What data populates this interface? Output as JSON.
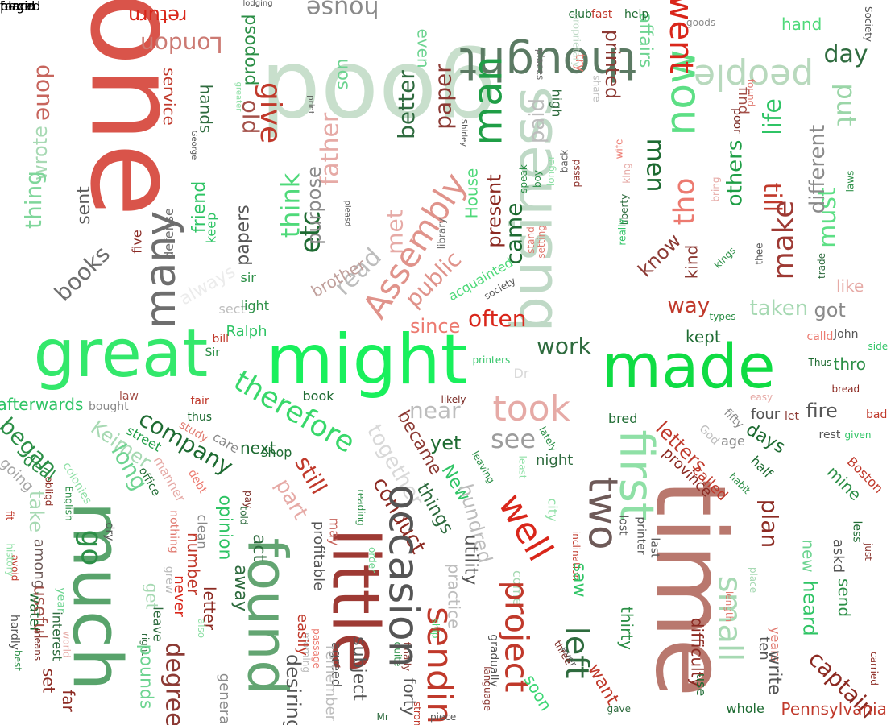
{
  "words": [
    {
      "text": "one",
      "color": "#d9544a"
    },
    {
      "text": "good",
      "color": "#c8dfcc"
    },
    {
      "text": "great",
      "color": "#33e86b"
    },
    {
      "text": "might",
      "color": "#19f05c"
    },
    {
      "text": "made",
      "color": "#0fdc43"
    },
    {
      "text": "time",
      "color": "#b9786e"
    },
    {
      "text": "much",
      "color": "#58a36b"
    },
    {
      "text": "business",
      "color": "#bfd9c6"
    },
    {
      "text": "found",
      "color": "#63a572"
    },
    {
      "text": "little",
      "color": "#9e3a34"
    },
    {
      "text": "first",
      "color": "#8fe0a6"
    },
    {
      "text": "thought",
      "color": "#5b7a63"
    },
    {
      "text": "people",
      "color": "#b8d9bd"
    },
    {
      "text": "man",
      "color": "#1f9e46"
    },
    {
      "text": "many",
      "color": "#6e6e6e"
    },
    {
      "text": "now",
      "color": "#5ddf85"
    },
    {
      "text": "went",
      "color": "#d9261a"
    },
    {
      "text": "house",
      "color": "#8a8a8a"
    },
    {
      "text": "London",
      "color": "#cc7a73"
    },
    {
      "text": "return",
      "color": "#d9261a"
    },
    {
      "text": "done",
      "color": "#c7655d"
    },
    {
      "text": "service",
      "color": "#c0392b"
    },
    {
      "text": "hands",
      "color": "#2e6b3e"
    },
    {
      "text": "old",
      "color": "#a35049"
    },
    {
      "text": "give",
      "color": "#c0392b"
    },
    {
      "text": "think",
      "color": "#4fd97a"
    },
    {
      "text": "father",
      "color": "#e6aaa6"
    },
    {
      "text": "etc",
      "color": "#1e6b32"
    },
    {
      "text": "purpose",
      "color": "#8a8a8a"
    },
    {
      "text": "Assembly",
      "color": "#e0938b"
    },
    {
      "text": "better",
      "color": "#2f6b3f"
    },
    {
      "text": "paper",
      "color": "#8c3a34"
    },
    {
      "text": "son",
      "color": "#6ed491"
    },
    {
      "text": "proposd",
      "color": "#2c8f47"
    },
    {
      "text": "wrote",
      "color": "#a7d9b3"
    },
    {
      "text": "thing",
      "color": "#7fd69a"
    },
    {
      "text": "sent",
      "color": "#5c5c5c"
    },
    {
      "text": "books",
      "color": "#6e6e6e"
    },
    {
      "text": "friend",
      "color": "#2fc465"
    },
    {
      "text": "keep",
      "color": "#2fc465"
    },
    {
      "text": "defense",
      "color": "#6e6e6e"
    },
    {
      "text": "papers",
      "color": "#555555"
    },
    {
      "text": "five",
      "color": "#8a2a24"
    },
    {
      "text": "always",
      "color": "#ececec"
    },
    {
      "text": "sir",
      "color": "#2c8f47"
    },
    {
      "text": "sect",
      "color": "#bfbfbf"
    },
    {
      "text": "light",
      "color": "#2c8f47"
    },
    {
      "text": "Ralph",
      "color": "#2fc465"
    },
    {
      "text": "bill",
      "color": "#c0392b"
    },
    {
      "text": "Sir",
      "color": "#2c8f47"
    },
    {
      "text": "met",
      "color": "#e6aaa6"
    },
    {
      "text": "read",
      "color": "#bdbdbd"
    },
    {
      "text": "brother",
      "color": "#c0a09c"
    },
    {
      "text": "public",
      "color": "#e0938b"
    },
    {
      "text": "since",
      "color": "#ec7a70"
    },
    {
      "text": "often",
      "color": "#d9261a"
    },
    {
      "text": "acquainted",
      "color": "#4fd97a"
    },
    {
      "text": "came",
      "color": "#1e6b32"
    },
    {
      "text": "present",
      "color": "#8c2a22"
    },
    {
      "text": "House",
      "color": "#4fd97a"
    },
    {
      "text": "library",
      "color": "#6e6e6e"
    },
    {
      "text": "stand",
      "color": "#e07a70"
    },
    {
      "text": "setting",
      "color": "#e07a70"
    },
    {
      "text": "society",
      "color": "#555555"
    },
    {
      "text": "printers",
      "color": "#2fc465"
    },
    {
      "text": "Dr",
      "color": "#d9d9d9"
    },
    {
      "text": "work",
      "color": "#2e6b3e"
    },
    {
      "text": "paid",
      "color": "#bdbdbd"
    },
    {
      "text": "speak",
      "color": "#2c8f47"
    },
    {
      "text": "boy",
      "color": "#2c8f47"
    },
    {
      "text": "longer",
      "color": "#8fe0a6"
    },
    {
      "text": "passd",
      "color": "#8a2a24"
    },
    {
      "text": "back",
      "color": "#5c5c5c"
    },
    {
      "text": "wife",
      "color": "#ec7a70"
    },
    {
      "text": "king",
      "color": "#e6aaa6"
    },
    {
      "text": "liberty",
      "color": "#2e6b3e"
    },
    {
      "text": "really",
      "color": "#2fc465"
    },
    {
      "text": "men",
      "color": "#1e6b32"
    },
    {
      "text": "tho",
      "color": "#ec7a70"
    },
    {
      "text": "know",
      "color": "#8c3a34"
    },
    {
      "text": "kind",
      "color": "#8c3a34"
    },
    {
      "text": "others",
      "color": "#1f9e46"
    },
    {
      "text": "till",
      "color": "#c0392b"
    },
    {
      "text": "make",
      "color": "#9e3a34"
    },
    {
      "text": "must",
      "color": "#5ddf85"
    },
    {
      "text": "different",
      "color": "#8a8a8a"
    },
    {
      "text": "laws",
      "color": "#2c8f47"
    },
    {
      "text": "thee",
      "color": "#555555"
    },
    {
      "text": "trade",
      "color": "#2e6b3e"
    },
    {
      "text": "kings",
      "color": "#2c8f47"
    },
    {
      "text": "bring",
      "color": "#e6aaa6"
    },
    {
      "text": "life",
      "color": "#2fc465"
    },
    {
      "text": "find",
      "color": "#a35049"
    },
    {
      "text": "poor",
      "color": "#7a2a24"
    },
    {
      "text": "found",
      "color": "#e07a70"
    },
    {
      "text": "put",
      "color": "#9bd6a8"
    },
    {
      "text": "day",
      "color": "#2e6b3e"
    },
    {
      "text": "hand",
      "color": "#4fd97a"
    },
    {
      "text": "affairs",
      "color": "#6ed491"
    },
    {
      "text": "printed",
      "color": "#8c3a34"
    },
    {
      "text": "high",
      "color": "#2e6b3e"
    },
    {
      "text": "share",
      "color": "#bdbdbd"
    },
    {
      "text": "try",
      "color": "#ec7a70"
    },
    {
      "text": "places",
      "color": "#6e6e6e"
    },
    {
      "text": "even",
      "color": "#6ed491"
    },
    {
      "text": "fast",
      "color": "#c0392b"
    },
    {
      "text": "help",
      "color": "#1e6b32"
    },
    {
      "text": "club",
      "color": "#1e6b32"
    },
    {
      "text": "goods",
      "color": "#8a8a8a"
    },
    {
      "text": "Society",
      "color": "#555555"
    },
    {
      "text": "way",
      "color": "#c0392b"
    },
    {
      "text": "taken",
      "color": "#a7d9b3"
    },
    {
      "text": "got",
      "color": "#8a8a8a"
    },
    {
      "text": "like",
      "color": "#e6aaa6"
    },
    {
      "text": "kept",
      "color": "#1e6b32"
    },
    {
      "text": "types",
      "color": "#2c8f47"
    },
    {
      "text": "calld",
      "color": "#ec7a70"
    },
    {
      "text": "John",
      "color": "#555555"
    },
    {
      "text": "side",
      "color": "#2fc465"
    },
    {
      "text": "thro",
      "color": "#2c8f47"
    },
    {
      "text": "Thus",
      "color": "#1e6b32"
    },
    {
      "text": "bread",
      "color": "#8c2a22"
    },
    {
      "text": "afterwards",
      "color": "#2fc465"
    },
    {
      "text": "law",
      "color": "#a35049"
    },
    {
      "text": "bought",
      "color": "#8a8a8a"
    },
    {
      "text": "fair",
      "color": "#c0392b"
    },
    {
      "text": "thus",
      "color": "#1e6b32"
    },
    {
      "text": "study",
      "color": "#e07a70"
    },
    {
      "text": "began",
      "color": "#2c8f47"
    },
    {
      "text": "Keimer",
      "color": "#a7d9b3"
    },
    {
      "text": "deal",
      "color": "#2c8f47"
    },
    {
      "text": "going",
      "color": "#a7a7a7"
    },
    {
      "text": "colonies",
      "color": "#8fe0a6"
    },
    {
      "text": "street",
      "color": "#1f9e46"
    },
    {
      "text": "long",
      "color": "#6ed491"
    },
    {
      "text": "company",
      "color": "#1e6b32"
    },
    {
      "text": "care",
      "color": "#8a8a8a"
    },
    {
      "text": "manner",
      "color": "#e6aaa6"
    },
    {
      "text": "office",
      "color": "#1e6b32"
    },
    {
      "text": "debt",
      "color": "#ec7a70"
    },
    {
      "text": "shop",
      "color": "#1e6b32"
    },
    {
      "text": "next",
      "color": "#1e6b32"
    },
    {
      "text": "therefore",
      "color": "#39d86b"
    },
    {
      "text": "book",
      "color": "#1e6b32"
    },
    {
      "text": "likely",
      "color": "#7a2a24"
    },
    {
      "text": "near",
      "color": "#bdbdbd"
    },
    {
      "text": "took",
      "color": "#e6aaa6"
    },
    {
      "text": "see",
      "color": "#9c9c9c"
    },
    {
      "text": "together",
      "color": "#d9d9d9"
    },
    {
      "text": "became",
      "color": "#8c3a34"
    },
    {
      "text": "yet",
      "color": "#1e6b32"
    },
    {
      "text": "still",
      "color": "#c0392b"
    },
    {
      "text": "part",
      "color": "#e6aaa6"
    },
    {
      "text": "New",
      "color": "#2fc465"
    },
    {
      "text": "things",
      "color": "#2e6b3e"
    },
    {
      "text": "conduct",
      "color": "#8c2a22"
    },
    {
      "text": "hundred",
      "color": "#bdbdbd"
    },
    {
      "text": "lately",
      "color": "#2c8f47"
    },
    {
      "text": "night",
      "color": "#2e6b3e"
    },
    {
      "text": "leaving",
      "color": "#2c8f47"
    },
    {
      "text": "least",
      "color": "#8fe0a6"
    },
    {
      "text": "city",
      "color": "#8fe0a6"
    },
    {
      "text": "well",
      "color": "#d9261a"
    },
    {
      "text": "two",
      "color": "#6e5a58"
    },
    {
      "text": "inclination",
      "color": "#c0392b"
    },
    {
      "text": "lost",
      "color": "#555555"
    },
    {
      "text": "printer",
      "color": "#555555"
    },
    {
      "text": "last",
      "color": "#555555"
    },
    {
      "text": "bred",
      "color": "#1e6b32"
    },
    {
      "text": "letters",
      "color": "#c0392b"
    },
    {
      "text": "God",
      "color": "#bdbdbd"
    },
    {
      "text": "province",
      "color": "#8c2a22"
    },
    {
      "text": "called",
      "color": "#c0392b"
    },
    {
      "text": "age",
      "color": "#8a8a8a"
    },
    {
      "text": "days",
      "color": "#1e6b32"
    },
    {
      "text": "half",
      "color": "#1e6b32"
    },
    {
      "text": "habit",
      "color": "#2c8f47"
    },
    {
      "text": "fifty",
      "color": "#8a8a8a"
    },
    {
      "text": "four",
      "color": "#555555"
    },
    {
      "text": "easy",
      "color": "#e6aaa6"
    },
    {
      "text": "fire",
      "color": "#555555"
    },
    {
      "text": "let",
      "color": "#8c3a34"
    },
    {
      "text": "rest",
      "color": "#555555"
    },
    {
      "text": "given",
      "color": "#2fc465"
    },
    {
      "text": "bad",
      "color": "#c0392b"
    },
    {
      "text": "mine",
      "color": "#2c8f47"
    },
    {
      "text": "Boston",
      "color": "#c0392b"
    },
    {
      "text": "plan",
      "color": "#8c2a22"
    },
    {
      "text": "less",
      "color": "#1e6b32"
    },
    {
      "text": "just",
      "color": "#8c3a34"
    },
    {
      "text": "new",
      "color": "#6ed491"
    },
    {
      "text": "askd",
      "color": "#555555"
    },
    {
      "text": "send",
      "color": "#2c8f47"
    },
    {
      "text": "heard",
      "color": "#2fc465"
    },
    {
      "text": "small",
      "color": "#a7d9b3"
    },
    {
      "text": "place",
      "color": "#a7d9b3"
    },
    {
      "text": "length",
      "color": "#e07a70"
    },
    {
      "text": "years",
      "color": "#e07a70"
    },
    {
      "text": "ten",
      "color": "#555555"
    },
    {
      "text": "write",
      "color": "#555555"
    },
    {
      "text": "difficulty",
      "color": "#8c2a22"
    },
    {
      "text": "use",
      "color": "#1e6b32"
    },
    {
      "text": "whole",
      "color": "#1e6b32"
    },
    {
      "text": "carried",
      "color": "#8c2a22"
    },
    {
      "text": "captain",
      "color": "#8c2a22"
    },
    {
      "text": "Pennsylvania",
      "color": "#c0392b"
    },
    {
      "text": "thirty",
      "color": "#2c8f47"
    },
    {
      "text": "saw",
      "color": "#2fc465"
    },
    {
      "text": "come",
      "color": "#a7d9b3"
    },
    {
      "text": "project",
      "color": "#c0392b"
    },
    {
      "text": "left",
      "color": "#2e6b3e"
    },
    {
      "text": "want",
      "color": "#c0392b"
    },
    {
      "text": "soon",
      "color": "#3cd774"
    },
    {
      "text": "gave",
      "color": "#2e6b3e"
    },
    {
      "text": "ever",
      "color": "#555555"
    },
    {
      "text": "three",
      "color": "#7a2a24"
    },
    {
      "text": "gradually",
      "color": "#555555"
    },
    {
      "text": "language",
      "color": "#8c3a34"
    },
    {
      "text": "sending",
      "color": "#c0392b"
    },
    {
      "text": "piece",
      "color": "#555555"
    },
    {
      "text": "strong",
      "color": "#c0392b"
    },
    {
      "text": "Mr",
      "color": "#2e6b3e"
    },
    {
      "text": "forty",
      "color": "#555555"
    },
    {
      "text": "quite",
      "color": "#2c8f47"
    },
    {
      "text": "finally",
      "color": "#8c3a34"
    },
    {
      "text": "ship",
      "color": "#4fd97a"
    },
    {
      "text": "subject",
      "color": "#555555"
    },
    {
      "text": "practice",
      "color": "#bdbdbd"
    },
    {
      "text": "utility",
      "color": "#555555"
    },
    {
      "text": "occasion",
      "color": "#555555"
    },
    {
      "text": "reading",
      "color": "#2c8f47"
    },
    {
      "text": "order",
      "color": "#6ed491"
    },
    {
      "text": "may",
      "color": "#c7655d"
    },
    {
      "text": "profitable",
      "color": "#555555"
    },
    {
      "text": "passage",
      "color": "#ec7a70"
    },
    {
      "text": "morning",
      "color": "#bdbdbd"
    },
    {
      "text": "agreed",
      "color": "#555555"
    },
    {
      "text": "remember",
      "color": "#bdbdbd"
    },
    {
      "text": "desiring",
      "color": "#555555"
    },
    {
      "text": "easily",
      "color": "#c0392b"
    },
    {
      "text": "act",
      "color": "#2e6b3e"
    },
    {
      "text": "told",
      "color": "#2e6b3e"
    },
    {
      "text": "pay",
      "color": "#7a2a24"
    },
    {
      "text": "opinion",
      "color": "#2fc465"
    },
    {
      "text": "away",
      "color": "#2e6b3e"
    },
    {
      "text": "clean",
      "color": "#8a8a8a"
    },
    {
      "text": "number",
      "color": "#c0392b"
    },
    {
      "text": "nothing",
      "color": "#e07a70"
    },
    {
      "text": "letter",
      "color": "#8c2a22"
    },
    {
      "text": "also",
      "color": "#8fe0a6"
    },
    {
      "text": "degree",
      "color": "#8c3a34"
    },
    {
      "text": "general",
      "color": "#8a8a8a"
    },
    {
      "text": "grew",
      "color": "#bdbdbd"
    },
    {
      "text": "never",
      "color": "#d9261a"
    },
    {
      "text": "get",
      "color": "#a7d9b3"
    },
    {
      "text": "leave",
      "color": "#2e6b3e"
    },
    {
      "text": "right",
      "color": "#2e6b3e"
    },
    {
      "text": "pounds",
      "color": "#6ed491"
    },
    {
      "text": "go",
      "color": "#2c8f47"
    },
    {
      "text": "dry",
      "color": "#555555"
    },
    {
      "text": "take",
      "color": "#a7d9b3"
    },
    {
      "text": "among",
      "color": "#6e5a58"
    },
    {
      "text": "water",
      "color": "#1e6b32"
    },
    {
      "text": "year",
      "color": "#6ed491"
    },
    {
      "text": "useful",
      "color": "#a35049"
    },
    {
      "text": "interest",
      "color": "#2e6b3e"
    },
    {
      "text": "world",
      "color": "#e6aaa6"
    },
    {
      "text": "set",
      "color": "#8c2a22"
    },
    {
      "text": "far",
      "color": "#8c2a22"
    },
    {
      "text": "hardly",
      "color": "#555555"
    },
    {
      "text": "means",
      "color": "#7a2a24"
    },
    {
      "text": "best",
      "color": "#2c8f47"
    },
    {
      "text": "avoid",
      "color": "#c0392b"
    },
    {
      "text": "obligd",
      "color": "#8c2a22"
    },
    {
      "text": "English",
      "color": "#2c8f47"
    },
    {
      "text": "history",
      "color": "#8fe0a6"
    },
    {
      "text": "fit",
      "color": "#c0392b"
    },
    {
      "text": "greater",
      "color": "#8fe0a6"
    },
    {
      "text": "George",
      "color": "#555555"
    },
    {
      "text": "pleasd",
      "color": "#555555"
    },
    {
      "text": "print",
      "color": "#555555"
    },
    {
      "text": "Shirley",
      "color": "#555555"
    },
    {
      "text": "proprietary",
      "color": "#bfd9c6"
    },
    {
      "text": "lodging",
      "color": "#555555"
    },
    {
      "text": "placd",
      "color": "#c0392b"
    },
    {
      "text": "begin",
      "color": "#a7d9b3"
    },
    {
      "text": "forced",
      "color": "#555555"
    }
  ]
}
